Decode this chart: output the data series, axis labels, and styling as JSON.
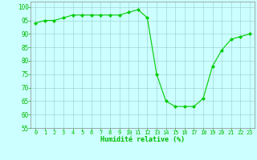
{
  "x": [
    0,
    1,
    2,
    3,
    4,
    5,
    6,
    7,
    8,
    9,
    10,
    11,
    12,
    13,
    14,
    15,
    16,
    17,
    18,
    19,
    20,
    21,
    22,
    23
  ],
  "y": [
    94,
    95,
    95,
    96,
    97,
    97,
    97,
    97,
    97,
    97,
    98,
    99,
    96,
    75,
    65,
    63,
    63,
    63,
    66,
    78,
    84,
    88,
    89,
    90
  ],
  "line_color": "#00cc00",
  "marker": "D",
  "marker_size": 2,
  "bg_color": "#ccffff",
  "grid_color": "#99cccc",
  "xlabel": "Humidité relative (%)",
  "xlabel_color": "#00bb00",
  "tick_color": "#00bb00",
  "ylim": [
    55,
    102
  ],
  "xlim": [
    -0.5,
    23.5
  ],
  "yticks": [
    55,
    60,
    65,
    70,
    75,
    80,
    85,
    90,
    95,
    100
  ],
  "xticks": [
    0,
    1,
    2,
    3,
    4,
    5,
    6,
    7,
    8,
    9,
    10,
    11,
    12,
    13,
    14,
    15,
    16,
    17,
    18,
    19,
    20,
    21,
    22,
    23
  ],
  "ylabel_fontsize": 6,
  "xlabel_fontsize": 6,
  "tick_fontsize": 5
}
